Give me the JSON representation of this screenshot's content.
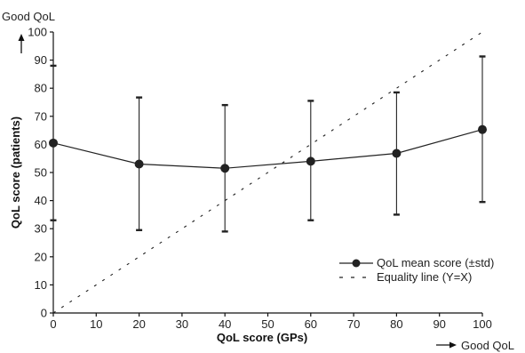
{
  "chart_data": {
    "type": "line",
    "xlabel": "QoL score (GPs)",
    "ylabel": "QoL score (patients)",
    "xlim": [
      0,
      100
    ],
    "ylim": [
      0,
      100
    ],
    "x_ticks": [
      0,
      10,
      20,
      30,
      40,
      50,
      60,
      70,
      80,
      90,
      100
    ],
    "y_ticks": [
      0,
      10,
      20,
      30,
      40,
      50,
      60,
      70,
      80,
      90,
      100
    ],
    "grid": false,
    "legend_position": "bottom-right",
    "top_left_annotation": "Good QoL",
    "bottom_right_annotation": "Good QoL",
    "series": [
      {
        "name": "QoL mean score (±std)",
        "style": "solid-with-markers",
        "x": [
          0,
          20,
          40,
          60,
          80,
          100
        ],
        "y": [
          60.5,
          53,
          51.5,
          54,
          56.8,
          65.3
        ],
        "err_low": [
          33,
          29.5,
          29,
          33,
          35,
          39.5
        ],
        "err_high": [
          88,
          76.7,
          74,
          75.5,
          78.5,
          91.3
        ]
      },
      {
        "name": "Equality line (Y=X)",
        "style": "dashed",
        "x": [
          0,
          100
        ],
        "y": [
          0,
          100
        ]
      }
    ]
  }
}
